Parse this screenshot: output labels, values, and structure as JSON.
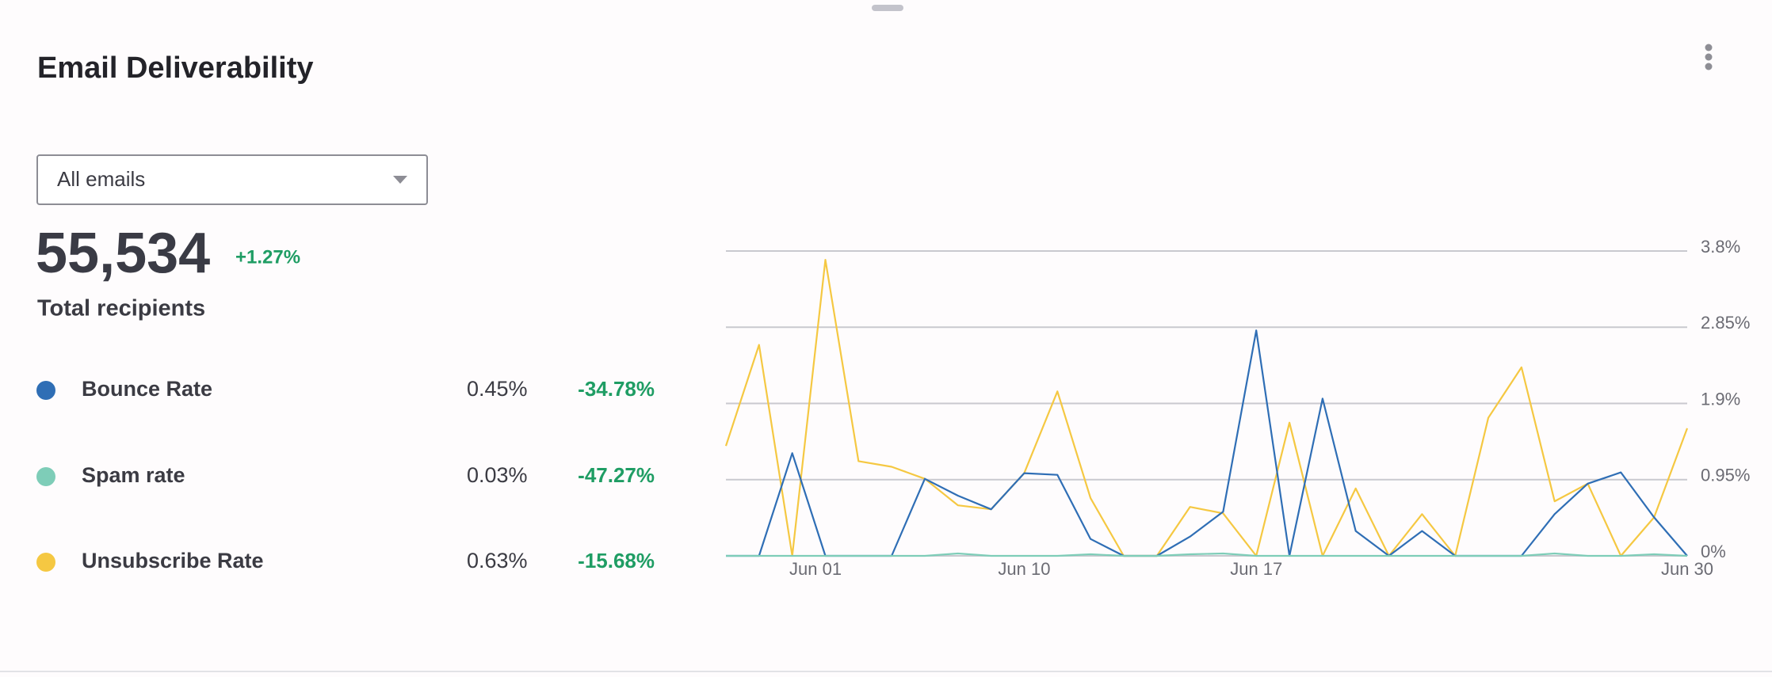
{
  "header": {
    "title": "Email Deliverability"
  },
  "filter": {
    "selected": "All emails"
  },
  "summary": {
    "total": "55,534",
    "change": "+1.27%",
    "label": "Total recipients"
  },
  "metrics": [
    {
      "value": "0.45%",
      "change": "-34.78%"
    },
    {
      "value": "0.03%",
      "change": "-47.27%"
    },
    {
      "value": "0.63%",
      "change": "-15.68%"
    }
  ],
  "chart_data": {
    "type": "line",
    "categories": [
      "Jun 01",
      null,
      null,
      null,
      null,
      null,
      null,
      null,
      null,
      "Jun 10",
      null,
      null,
      null,
      null,
      null,
      null,
      "Jun 17",
      null,
      null,
      null,
      null,
      null,
      null,
      null,
      null,
      null,
      null,
      null,
      null,
      "Jun 30"
    ],
    "series": [
      {
        "name": "Bounce Rate",
        "color": "#2f6eb5",
        "values": [
          0,
          0,
          1.28,
          0,
          0,
          0,
          0.96,
          0.75,
          0.58,
          1.03,
          1.01,
          0.21,
          0,
          0,
          0.24,
          0.55,
          2.81,
          0,
          1.96,
          0.31,
          0,
          0.31,
          0,
          0,
          0,
          0.52,
          0.9,
          1.04,
          0.48,
          0
        ]
      },
      {
        "name": "Spam rate",
        "color": "#7ecdb8",
        "values": [
          0,
          0,
          0,
          0,
          0,
          0,
          0,
          0.03,
          0,
          0,
          0,
          0.02,
          0,
          0,
          0.02,
          0.03,
          0,
          0,
          0,
          0,
          0,
          0,
          0,
          0,
          0,
          0.03,
          0,
          0,
          0.02,
          0
        ]
      },
      {
        "name": "Unsubscribe Rate",
        "color": "#f5c842",
        "values": [
          1.37,
          2.63,
          0,
          3.69,
          1.18,
          1.11,
          0.96,
          0.63,
          0.58,
          1.03,
          2.05,
          0.72,
          0,
          0,
          0.61,
          0.53,
          0,
          1.66,
          0,
          0.84,
          0,
          0.52,
          0,
          1.72,
          2.35,
          0.68,
          0.9,
          0,
          0.48,
          1.59
        ]
      }
    ],
    "ylim": [
      0,
      3.8
    ],
    "yticks": [
      {
        "value": 0,
        "label": "0%"
      },
      {
        "value": 0.95,
        "label": "0.95%"
      },
      {
        "value": 1.9,
        "label": "1.9%"
      },
      {
        "value": 2.85,
        "label": "2.85%"
      },
      {
        "value": 3.8,
        "label": "3.8%"
      }
    ],
    "grid": true
  }
}
